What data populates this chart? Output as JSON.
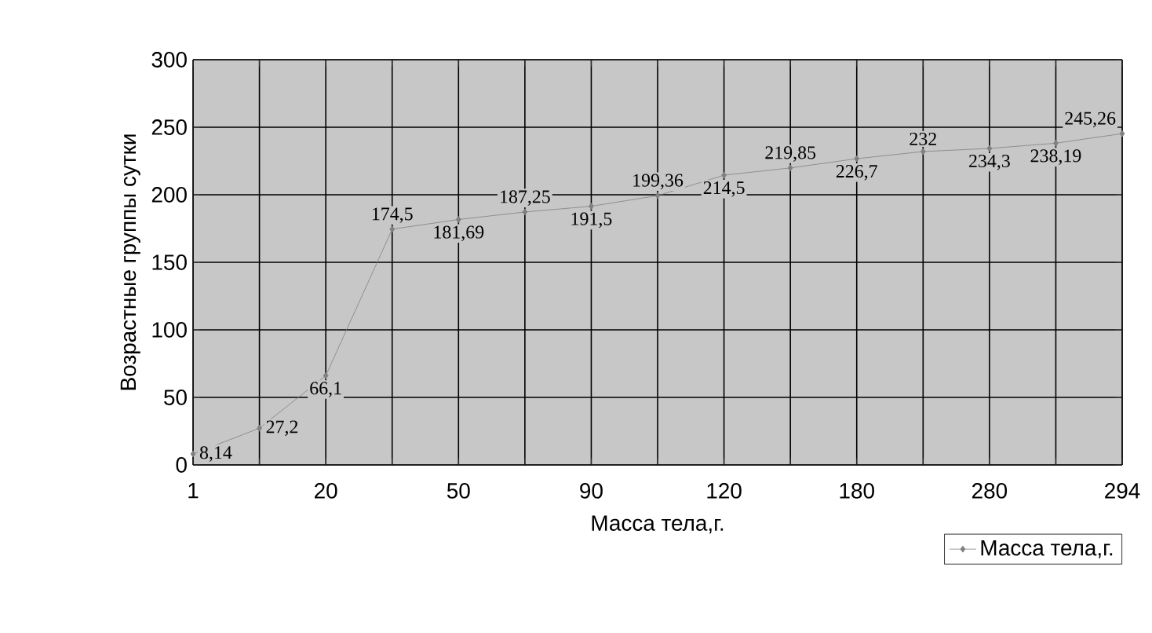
{
  "chart_data": {
    "type": "line",
    "xlabel": "Масса тела,г.",
    "ylabel": "Возрастные группы сутки",
    "categories": [
      "1",
      null,
      "20",
      null,
      "50",
      null,
      "90",
      null,
      "120",
      null,
      "180",
      null,
      "280",
      null,
      "294"
    ],
    "series": [
      {
        "name": "Масса тела,г.",
        "color": "#808080",
        "values": [
          8.14,
          27.2,
          66.1,
          174.5,
          181.69,
          187.25,
          191.5,
          199.36,
          214.5,
          219.85,
          226.7,
          232,
          234.3,
          238.19,
          245.26
        ],
        "value_labels": [
          "8,14",
          "27,2",
          "66,1",
          "174,5",
          "181,69",
          "187,25",
          "191,5",
          "199,36",
          "214,5",
          "219,85",
          "226,7",
          "232",
          "234,3",
          "238,19",
          "245,26"
        ]
      }
    ],
    "ylim": [
      0,
      300
    ],
    "yticks": [
      0,
      50,
      100,
      150,
      200,
      250,
      300
    ],
    "grid": true,
    "legend": "bottom right",
    "marker": "diamond",
    "line_style": "solid"
  }
}
